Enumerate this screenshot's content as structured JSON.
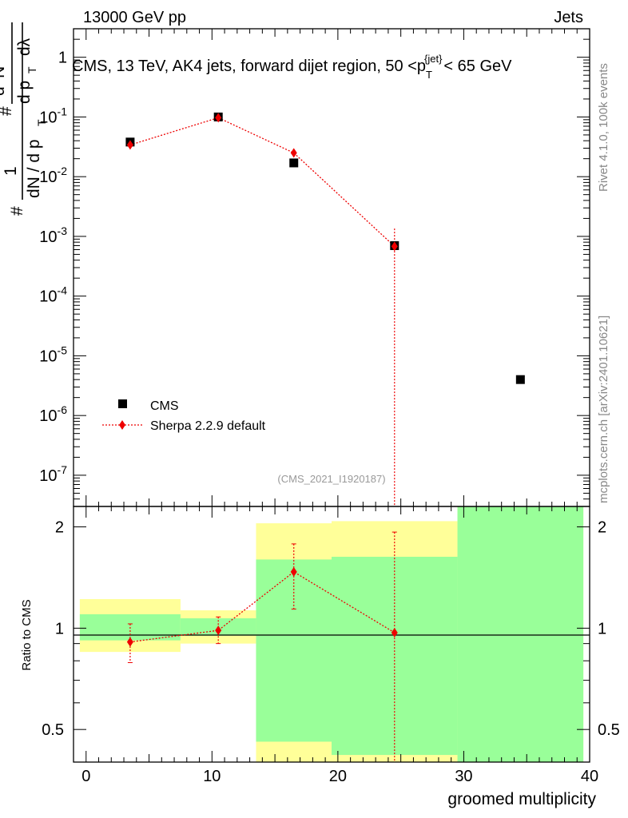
{
  "header": {
    "left": "13000 GeV pp",
    "right": "Jets",
    "plot_title": "CMS, 13 TeV, AK4 jets, forward dijet region, 50 <p",
    "plot_title_sub": "T",
    "plot_title_sup": "{jet}",
    "plot_title_end": "< 65 GeV",
    "analysis_id": "(CMS_2021_I1920187)",
    "rivet_label": "Rivet 4.1.0,  100k events",
    "mcplots_label": "mcplots.cern.ch [arXiv:2401.10621]"
  },
  "colors": {
    "data": "#000000",
    "mc": "#ee0000",
    "band_inner": "#99ff99",
    "band_outer": "#ffff99"
  },
  "chart_data": [
    {
      "type": "scatter",
      "panel": "main",
      "xlabel": "groomed multiplicity",
      "ylabel": "# 1/(dN / d p_T #) d²N/(d p_T dλ)",
      "ylabel_parts": [
        "#",
        "1",
        "dN / d p",
        "T",
        "#",
        "d",
        "2",
        "N",
        "d p",
        "T",
        "dλ"
      ],
      "yscale": "log",
      "xlim": [
        -1,
        40
      ],
      "ylim": [
        3e-08,
        3
      ],
      "y_ticks": [
        {
          "value": 1,
          "label": "1"
        },
        {
          "value": 0.1,
          "base": "10",
          "exp": "-1"
        },
        {
          "value": 0.01,
          "base": "10",
          "exp": "-2"
        },
        {
          "value": 0.001,
          "base": "10",
          "exp": "-3"
        },
        {
          "value": 0.0001,
          "base": "10",
          "exp": "-4"
        },
        {
          "value": 1e-05,
          "base": "10",
          "exp": "-5"
        },
        {
          "value": 1e-06,
          "base": "10",
          "exp": "-6"
        },
        {
          "value": 1e-07,
          "base": "10",
          "exp": "-7"
        }
      ],
      "series": [
        {
          "name": "CMS",
          "marker": "square",
          "x": [
            3.5,
            10.5,
            16.5,
            24.5,
            34.5
          ],
          "y": [
            0.038,
            0.1,
            0.017,
            0.0007,
            4e-06
          ]
        },
        {
          "name": "Sherpa 2.2.9 default",
          "marker": "diamond",
          "line": "dotted",
          "x": [
            3.5,
            10.5,
            16.5,
            24.5
          ],
          "y": [
            0.034,
            0.097,
            0.025,
            0.00068
          ],
          "y_low": [
            0.029,
            0.088,
            0.021,
            0.0
          ],
          "y_high": [
            0.039,
            0.106,
            0.029,
            0.00135
          ]
        }
      ],
      "legend_position": "lower-left"
    },
    {
      "type": "scatter",
      "panel": "ratio",
      "xlabel": "groomed multiplicity",
      "ylabel": "Ratio to CMS",
      "yscale": "log",
      "xlim": [
        -1,
        40
      ],
      "ylim": [
        0.4,
        2.3
      ],
      "x_ticks": [
        "0",
        "10",
        "20",
        "30",
        "40"
      ],
      "y_ticks": [
        {
          "value": 0.5,
          "label": "0.5"
        },
        {
          "value": 1,
          "label": "1"
        },
        {
          "value": 2,
          "label": "2"
        }
      ],
      "bands": [
        {
          "x0": -0.5,
          "x1": 7.5,
          "outer": [
            0.85,
            1.22
          ],
          "inner": [
            0.92,
            1.1
          ]
        },
        {
          "x0": 7.5,
          "x1": 13.5,
          "outer": [
            0.9,
            1.13
          ],
          "inner": [
            0.95,
            1.07
          ]
        },
        {
          "x0": 13.5,
          "x1": 19.5,
          "outer": [
            0.3,
            2.05
          ],
          "inner": [
            0.46,
            1.6
          ]
        },
        {
          "x0": 19.5,
          "x1": 29.5,
          "outer": [
            0.3,
            2.08
          ],
          "inner": [
            0.42,
            1.63
          ]
        },
        {
          "x0": 29.5,
          "x1": 39.5,
          "outer": [
            0.3,
            3.0
          ],
          "inner": [
            0.3,
            3.0
          ]
        }
      ],
      "series": [
        {
          "name": "Sherpa 2.2.9 default",
          "marker": "diamond",
          "line": "dotted",
          "x": [
            3.5,
            10.5,
            16.5,
            24.5
          ],
          "y": [
            0.91,
            0.985,
            1.47,
            0.97
          ],
          "y_low": [
            0.79,
            0.9,
            1.14,
            0.3
          ],
          "y_high": [
            1.03,
            1.08,
            1.78,
            1.93
          ]
        }
      ]
    }
  ]
}
